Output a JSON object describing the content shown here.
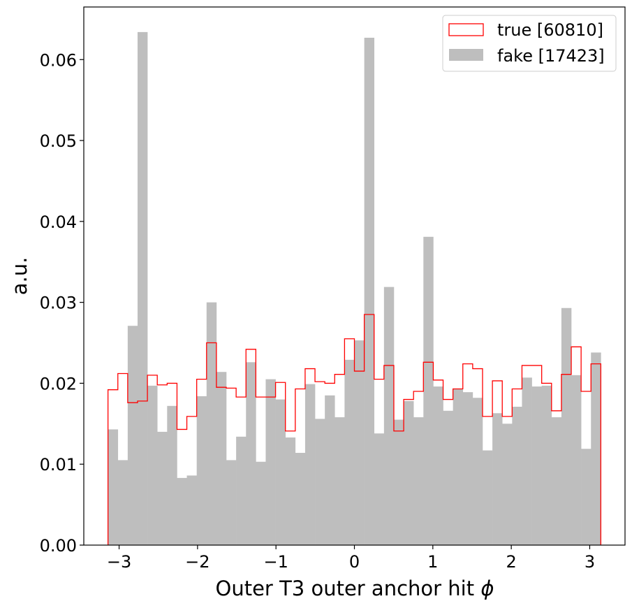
{
  "chart_data": {
    "type": "histogram",
    "xlabel": "Outer T3 outer anchor hit ",
    "xlabel_symbol": "ϕ",
    "ylabel": "a.u.",
    "xlim": [
      -3.45,
      3.45
    ],
    "ylim": [
      0,
      0.0665
    ],
    "x_ticks": [
      {
        "value": -3,
        "label": "−3"
      },
      {
        "value": -2,
        "label": "−2"
      },
      {
        "value": -1,
        "label": "−1"
      },
      {
        "value": 0,
        "label": "0"
      },
      {
        "value": 1,
        "label": "1"
      },
      {
        "value": 2,
        "label": "2"
      },
      {
        "value": 3,
        "label": "3"
      }
    ],
    "y_ticks": [
      {
        "value": 0,
        "label": "0.00"
      },
      {
        "value": 0.01,
        "label": "0.01"
      },
      {
        "value": 0.02,
        "label": "0.02"
      },
      {
        "value": 0.03,
        "label": "0.03"
      },
      {
        "value": 0.04,
        "label": "0.04"
      },
      {
        "value": 0.05,
        "label": "0.05"
      },
      {
        "value": 0.06,
        "label": "0.06"
      }
    ],
    "bin_range": [
      -3.1416,
      3.1416
    ],
    "n_bins": 50,
    "legend_position": "top-right",
    "series": [
      {
        "name": "true [60810]",
        "style": "step",
        "color": "#ff0000",
        "values": [
          0.0192,
          0.0212,
          0.0176,
          0.0178,
          0.021,
          0.0198,
          0.02,
          0.0143,
          0.0159,
          0.0205,
          0.025,
          0.0195,
          0.0194,
          0.0183,
          0.0242,
          0.0183,
          0.0183,
          0.0201,
          0.0141,
          0.0193,
          0.0218,
          0.0202,
          0.02,
          0.0211,
          0.0255,
          0.0215,
          0.0285,
          0.0205,
          0.0222,
          0.0141,
          0.018,
          0.019,
          0.0226,
          0.0204,
          0.018,
          0.0193,
          0.0224,
          0.0218,
          0.0159,
          0.0203,
          0.0159,
          0.0193,
          0.0222,
          0.0222,
          0.02,
          0.0166,
          0.0211,
          0.0245,
          0.019,
          0.0224
        ]
      },
      {
        "name": "fake [17423]",
        "style": "filled",
        "color": "#bebebe",
        "values": [
          0.0143,
          0.0105,
          0.0271,
          0.0634,
          0.0197,
          0.014,
          0.0172,
          0.0083,
          0.0086,
          0.0184,
          0.03,
          0.0214,
          0.0105,
          0.0134,
          0.0226,
          0.0103,
          0.0205,
          0.018,
          0.0133,
          0.0114,
          0.0199,
          0.0156,
          0.0185,
          0.0158,
          0.0229,
          0.0253,
          0.0627,
          0.0138,
          0.0319,
          0.0155,
          0.0178,
          0.0158,
          0.0381,
          0.0196,
          0.0166,
          0.0193,
          0.0189,
          0.0182,
          0.0117,
          0.0163,
          0.015,
          0.0171,
          0.0207,
          0.0196,
          0.0197,
          0.0158,
          0.0293,
          0.021,
          0.0119,
          0.0238
        ]
      }
    ]
  }
}
